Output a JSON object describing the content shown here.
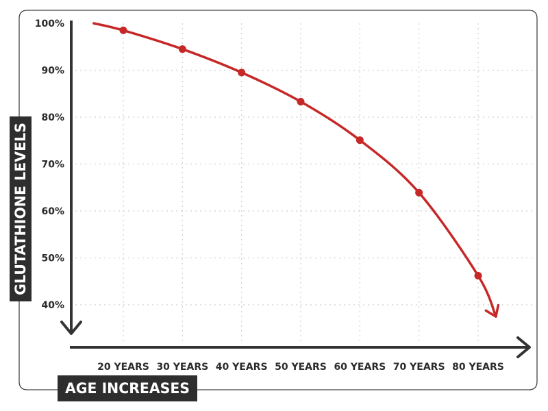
{
  "colors": {
    "line": "#c62828",
    "axis": "#333333",
    "badge_bg": "#2e2e2e",
    "badge_text": "#ffffff",
    "grid": "#cfcfcf",
    "frame": "#444444"
  },
  "chart_data": {
    "type": "line",
    "ylabel": "GLUTATHIONE LEVELS",
    "xlabel": "AGE INCREASES",
    "y_ticks": [
      "100%",
      "90%",
      "80%",
      "70%",
      "60%",
      "50%",
      "40%"
    ],
    "y_tick_values": [
      100,
      90,
      80,
      70,
      60,
      50,
      40
    ],
    "x_ticks": [
      "20 YEARS",
      "30 YEARS",
      "40 YEARS",
      "50 YEARS",
      "60 YEARS",
      "70 YEARS",
      "80 YEARS"
    ],
    "x_tick_values": [
      20,
      30,
      40,
      50,
      60,
      70,
      80
    ],
    "series": [
      {
        "x": [
          20,
          30,
          40,
          50,
          60,
          70,
          80
        ],
        "y": [
          98.5,
          94.5,
          89.5,
          83.3,
          75.1,
          63.9,
          46.2
        ]
      }
    ],
    "curve_start": {
      "x": 15,
      "y": 100
    },
    "curve_end": {
      "x": 83,
      "y": 37.5
    },
    "ylim": [
      36,
      100
    ],
    "xlim": [
      10,
      88
    ],
    "grid": true,
    "grid_style": "dotted",
    "end_arrow": true
  }
}
